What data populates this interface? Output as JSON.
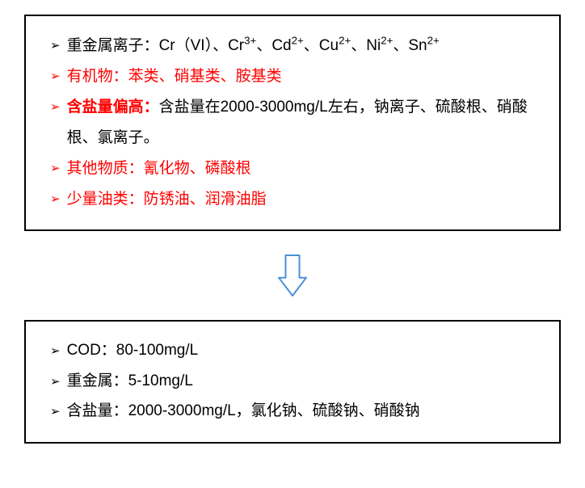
{
  "topBox": {
    "borderColor": "#000000",
    "items": [
      {
        "bulletColor": "#000000",
        "segments": [
          {
            "html": "重金属离子：Cr（VI）、Cr<sup>3+</sup>、Cd<sup>2+</sup>、Cu<sup>2+</sup>、Ni<sup>2+</sup>、Sn<sup>2+</sup>",
            "color": "#000000",
            "bold": false
          }
        ]
      },
      {
        "bulletColor": "#ff0000",
        "segments": [
          {
            "html": "有机物：苯类、硝基类、胺基类",
            "color": "#ff0000",
            "bold": false
          }
        ]
      },
      {
        "bulletColor": "#ff0000",
        "segments": [
          {
            "html": "含盐量偏高：",
            "color": "#ff0000",
            "bold": true
          },
          {
            "html": "含盐量在2000-3000mg/L左右，钠离子、硫酸根、硝酸根、氯离子。",
            "color": "#000000",
            "bold": false
          }
        ]
      },
      {
        "bulletColor": "#ff0000",
        "segments": [
          {
            "html": "其他物质：氰化物、磷酸根",
            "color": "#ff0000",
            "bold": false
          }
        ]
      },
      {
        "bulletColor": "#ff0000",
        "segments": [
          {
            "html": "少量油类：防锈油、润滑油脂",
            "color": "#ff0000",
            "bold": false
          }
        ]
      }
    ]
  },
  "arrow": {
    "strokeColor": "#4a90d9",
    "width": 38,
    "height": 54
  },
  "bottomBox": {
    "borderColor": "#000000",
    "items": [
      {
        "bulletColor": "#000000",
        "segments": [
          {
            "html": "COD：80-100mg/L",
            "color": "#000000",
            "bold": false
          }
        ]
      },
      {
        "bulletColor": "#000000",
        "segments": [
          {
            "html": "重金属：5-10mg/L",
            "color": "#000000",
            "bold": false
          }
        ]
      },
      {
        "bulletColor": "#000000",
        "segments": [
          {
            "html": "含盐量：2000-3000mg/L，氯化钠、硫酸钠、硝酸钠",
            "color": "#000000",
            "bold": false
          }
        ]
      }
    ]
  }
}
